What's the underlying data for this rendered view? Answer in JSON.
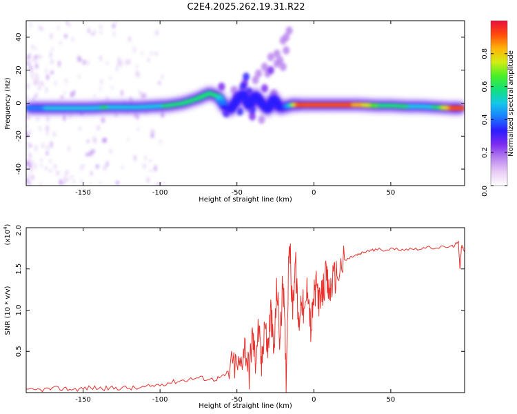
{
  "title": "C2E4.2025.262.19.31.R22",
  "colors": {
    "snr_line": "#e8322e",
    "axes": "#000000",
    "colormap": [
      "#ffffff",
      "#e9ccf5",
      "#b884ee",
      "#7d2cf0",
      "#2c1cff",
      "#1a7cff",
      "#14c8e8",
      "#12e07a",
      "#4af024",
      "#d4ec14",
      "#ffb208",
      "#ff4a0c",
      "#e8103c"
    ]
  },
  "chart_data": [
    {
      "type": "heatmap",
      "panel": "spectrogram",
      "xlabel": "Height of straight line (km)",
      "ylabel": "Frequency (Hz)",
      "xlim": [
        -187,
        98
      ],
      "ylim": [
        -50,
        50
      ],
      "xticks": [
        -150,
        -100,
        -50,
        0,
        50
      ],
      "xtick_labels": [
        "-150",
        "-100",
        "-50",
        "0",
        "50"
      ],
      "yticks": [
        -40,
        -20,
        0,
        20,
        40
      ],
      "ytick_labels": [
        "-40",
        "-20",
        "0",
        "20",
        "40"
      ],
      "colorbar": {
        "label": "Normalized spectral amplitude",
        "range": [
          0,
          1
        ],
        "ticks": [
          0.0,
          0.2,
          0.4,
          0.6,
          0.8
        ],
        "tick_labels": [
          "0.0",
          "0.2",
          "0.4",
          "0.6",
          "0.8"
        ]
      },
      "ridge": {
        "x": [
          -185,
          -175,
          -165,
          -155,
          -145,
          -135,
          -125,
          -115,
          -105,
          -95,
          -85,
          -75,
          -68,
          -62,
          -58,
          -54,
          -50,
          -46,
          -42,
          -38,
          -34,
          -30,
          -26,
          -22,
          -18,
          -14,
          -10,
          0,
          10,
          20,
          30,
          40,
          50,
          60,
          70,
          80,
          90,
          97
        ],
        "y": [
          -3,
          -3,
          -3,
          -3,
          -3,
          -2.5,
          -2.5,
          -2.5,
          -2,
          -1.5,
          0,
          3,
          6,
          4,
          -2,
          -4,
          2,
          6,
          -2,
          5,
          0,
          -4,
          3,
          -3,
          -2,
          -1,
          -1,
          -1,
          -1,
          -1,
          -1,
          -1.5,
          -1.5,
          -2,
          -2,
          -2.5,
          -3,
          -3
        ],
        "amplitude": [
          0.45,
          0.45,
          0.5,
          0.5,
          0.5,
          0.55,
          0.5,
          0.5,
          0.5,
          0.55,
          0.55,
          0.6,
          0.6,
          0.55,
          0.35,
          0.35,
          0.3,
          0.35,
          0.3,
          0.3,
          0.3,
          0.3,
          0.3,
          0.3,
          0.35,
          0.55,
          0.9,
          0.95,
          0.95,
          0.9,
          0.85,
          0.65,
          0.55,
          0.55,
          0.5,
          0.55,
          0.9,
          0.95
        ]
      },
      "scatter_blobs": {
        "x": [
          -60,
          -57,
          -52,
          -48,
          -45,
          -42,
          -40,
          -38,
          -36,
          -34,
          -32,
          -30,
          -28,
          -26,
          -24,
          -22,
          -20,
          -18,
          -50,
          -46,
          -44,
          -40,
          -36,
          -32,
          -28,
          -24,
          -20,
          -18,
          -16
        ],
        "y": [
          10,
          -6,
          8,
          -5,
          12,
          7,
          -8,
          14,
          2,
          -10,
          9,
          18,
          20,
          6,
          24,
          26,
          38,
          40,
          4,
          10,
          16,
          -4,
          18,
          22,
          28,
          30,
          22,
          32,
          44
        ],
        "amplitude": [
          0.25,
          0.3,
          0.2,
          0.3,
          0.25,
          0.3,
          0.25,
          0.2,
          0.3,
          0.2,
          0.25,
          0.2,
          0.25,
          0.2,
          0.2,
          0.2,
          0.15,
          0.2,
          0.35,
          0.35,
          0.3,
          0.35,
          0.2,
          0.2,
          0.2,
          0.15,
          0.2,
          0.2,
          0.15
        ]
      }
    },
    {
      "type": "line",
      "panel": "snr",
      "xlabel": "Height of straight line (km)",
      "ylabel": "SNR (10 * v/v)",
      "y_scale_note": "(x10",
      "y_scale_exp": "4",
      "y_scale_close": ")",
      "xlim": [
        -187,
        98
      ],
      "ylim": [
        0,
        2.0
      ],
      "xticks": [
        -150,
        -100,
        -50,
        0,
        50
      ],
      "xtick_labels": [
        "-150",
        "-100",
        "-50",
        "0",
        "50"
      ],
      "yticks": [
        0.5,
        1.0,
        1.5,
        2.0
      ],
      "ytick_labels": [
        "0.5",
        "1.0",
        "1.5",
        "2.0"
      ],
      "series": [
        {
          "name": "SNR",
          "x": [
            -187,
            -175,
            -165,
            -155,
            -145,
            -135,
            -125,
            -115,
            -105,
            -95,
            -85,
            -75,
            -65,
            -58,
            -52,
            -48,
            -45,
            -42,
            -40,
            -38,
            -36,
            -34,
            -32,
            -30,
            -28,
            -26,
            -24,
            -22,
            -20,
            -18,
            -16,
            -14,
            -12,
            -10,
            -8,
            -6,
            -4,
            -2,
            0,
            2,
            4,
            6,
            8,
            10,
            12,
            15,
            20,
            25,
            30,
            35,
            40,
            50,
            60,
            70,
            80,
            90,
            94,
            95,
            96,
            98
          ],
          "y": [
            0.02,
            0.04,
            0.05,
            0.04,
            0.06,
            0.05,
            0.06,
            0.05,
            0.08,
            0.12,
            0.15,
            0.18,
            0.16,
            0.2,
            0.35,
            0.3,
            0.6,
            0.25,
            0.7,
            0.4,
            0.8,
            0.3,
            0.9,
            0.5,
            1.0,
            0.45,
            1.3,
            0.6,
            1.4,
            0.2,
            1.95,
            1.0,
            1.6,
            0.8,
            1.2,
            0.9,
            1.35,
            0.75,
            1.15,
            1.3,
            1.05,
            1.25,
            1.4,
            1.2,
            1.35,
            1.45,
            1.6,
            1.65,
            1.68,
            1.72,
            1.73,
            1.74,
            1.74,
            1.75,
            1.76,
            1.77,
            1.82,
            1.5,
            1.78,
            1.72
          ]
        }
      ]
    }
  ]
}
